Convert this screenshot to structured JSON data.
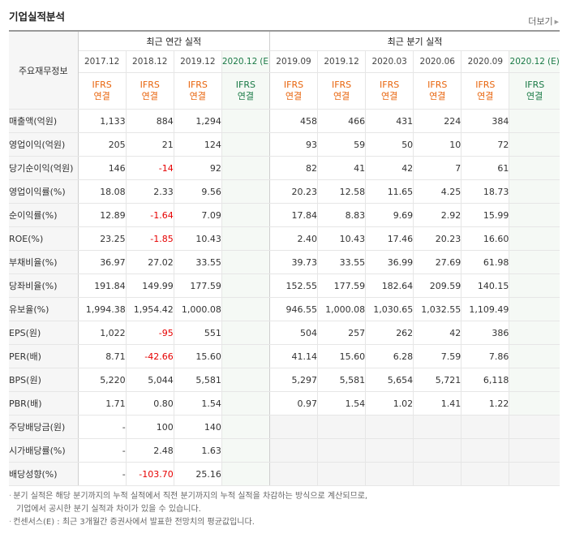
{
  "section_title": "기업실적분석",
  "more_label": "더보기",
  "header": {
    "row_label": "주요재무정보",
    "annual_group": "최근 연간 실적",
    "quarter_group": "최근 분기 실적",
    "ifrs_top": "IFRS",
    "ifrs_bottom": "연결",
    "annual_periods": [
      "2017.12",
      "2018.12",
      "2019.12"
    ],
    "annual_estimate": "2020.12",
    "quarter_periods": [
      "2019.09",
      "2019.12",
      "2020.03",
      "2020.06",
      "2020.09"
    ],
    "quarter_estimate": "2020.12",
    "estimate_mark": "(E)"
  },
  "rows": [
    {
      "label": "매출액(억원)",
      "annual": [
        "1,133",
        "884",
        "1,294",
        ""
      ],
      "quarter": [
        "458",
        "466",
        "431",
        "224",
        "384",
        ""
      ]
    },
    {
      "label": "영업이익(억원)",
      "annual": [
        "205",
        "21",
        "124",
        ""
      ],
      "quarter": [
        "93",
        "59",
        "50",
        "10",
        "72",
        ""
      ]
    },
    {
      "label": "당기순이익(억원)",
      "annual": [
        "146",
        "-14",
        "92",
        ""
      ],
      "quarter": [
        "82",
        "41",
        "42",
        "7",
        "61",
        ""
      ]
    },
    {
      "label": "영업이익률(%)",
      "annual": [
        "18.08",
        "2.33",
        "9.56",
        ""
      ],
      "quarter": [
        "20.23",
        "12.58",
        "11.65",
        "4.25",
        "18.73",
        ""
      ]
    },
    {
      "label": "순이익률(%)",
      "annual": [
        "12.89",
        "-1.64",
        "7.09",
        ""
      ],
      "quarter": [
        "17.84",
        "8.83",
        "9.69",
        "2.92",
        "15.99",
        ""
      ]
    },
    {
      "label": "ROE(%)",
      "annual": [
        "23.25",
        "-1.85",
        "10.43",
        ""
      ],
      "quarter": [
        "2.40",
        "10.43",
        "17.46",
        "20.23",
        "16.60",
        ""
      ]
    },
    {
      "label": "부채비율(%)",
      "annual": [
        "36.97",
        "27.02",
        "33.55",
        ""
      ],
      "quarter": [
        "39.73",
        "33.55",
        "36.99",
        "27.69",
        "61.98",
        ""
      ]
    },
    {
      "label": "당좌비율(%)",
      "annual": [
        "191.84",
        "149.99",
        "177.59",
        ""
      ],
      "quarter": [
        "152.55",
        "177.59",
        "182.64",
        "209.59",
        "140.15",
        ""
      ]
    },
    {
      "label": "유보율(%)",
      "annual": [
        "1,994.38",
        "1,954.42",
        "1,000.08",
        ""
      ],
      "quarter": [
        "946.55",
        "1,000.08",
        "1,030.65",
        "1,032.55",
        "1,109.49",
        ""
      ]
    },
    {
      "label": "EPS(원)",
      "annual": [
        "1,022",
        "-95",
        "551",
        ""
      ],
      "quarter": [
        "504",
        "257",
        "262",
        "42",
        "386",
        ""
      ]
    },
    {
      "label": "PER(배)",
      "annual": [
        "8.71",
        "-42.66",
        "15.60",
        ""
      ],
      "quarter": [
        "41.14",
        "15.60",
        "6.28",
        "7.59",
        "7.86",
        ""
      ]
    },
    {
      "label": "BPS(원)",
      "annual": [
        "5,220",
        "5,044",
        "5,581",
        ""
      ],
      "quarter": [
        "5,297",
        "5,581",
        "5,654",
        "5,721",
        "6,118",
        ""
      ]
    },
    {
      "label": "PBR(배)",
      "annual": [
        "1.71",
        "0.80",
        "1.54",
        ""
      ],
      "quarter": [
        "0.97",
        "1.54",
        "1.02",
        "1.41",
        "1.22",
        ""
      ]
    },
    {
      "label": "주당배당금(원)",
      "annual": [
        "-",
        "100",
        "140",
        ""
      ],
      "quarter": null
    },
    {
      "label": "시가배당률(%)",
      "annual": [
        "-",
        "2.48",
        "1.63",
        ""
      ],
      "quarter": null
    },
    {
      "label": "배당성향(%)",
      "annual": [
        "-",
        "-103.70",
        "25.16",
        ""
      ],
      "quarter": null
    }
  ],
  "notes": {
    "line1": "분기 실적은 해당 분기까지의 누적 실적에서 직전 분기까지의 누적 실적을 차감하는 방식으로 계산되므로,",
    "line2": "기업에서 공시한 분기 실적과 차이가 있을 수 있습니다.",
    "line3": "컨센서스(E) : 최근 3개월간 증권사에서 발표한 전망치의 평균값입니다."
  },
  "colors": {
    "negative": "#e60000",
    "ifrs": "#e8640c",
    "estimate_header": "#1a7a46",
    "estimate_background": "#f5f9f5"
  }
}
